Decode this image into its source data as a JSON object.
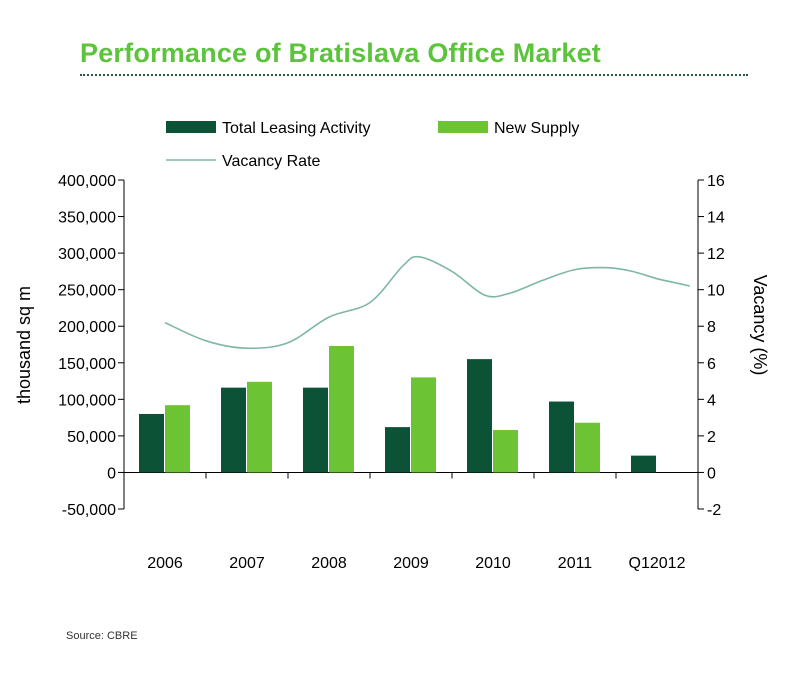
{
  "page": {
    "title": "Performance of Bratislava Office Market",
    "source": "Source: CBRE"
  },
  "colors": {
    "title": "#5cc43c",
    "leasing": "#0b5236",
    "supply": "#6cc333",
    "vacancy": "#7fb7a6",
    "axis": "#000000"
  },
  "chart_data": {
    "type": "bar",
    "title": "Performance of Bratislava Office Market",
    "categories": [
      "2006",
      "2007",
      "2008",
      "2009",
      "2010",
      "2011",
      "Q12012"
    ],
    "ylabel": "thousand sq m",
    "y2label": "Vacancy (%)",
    "ylim": [
      -50000,
      400000
    ],
    "y2lim": [
      -2,
      16
    ],
    "yticks": [
      "-50,000",
      "0",
      "50,000",
      "100,000",
      "150,000",
      "200,000",
      "250,000",
      "300,000",
      "350,000",
      "400,000"
    ],
    "y2ticks": [
      "-2",
      "0",
      "2",
      "4",
      "6",
      "8",
      "10",
      "12",
      "14",
      "16"
    ],
    "series": [
      {
        "name": "Total Leasing Activity",
        "type": "bar",
        "axis": "left",
        "values": [
          80000,
          116000,
          116000,
          62000,
          155000,
          97000,
          23000
        ]
      },
      {
        "name": "New Supply",
        "type": "bar",
        "axis": "left",
        "values": [
          92000,
          124000,
          173000,
          130000,
          58000,
          68000,
          null
        ]
      },
      {
        "name": "Vacancy Rate",
        "type": "line",
        "axis": "right",
        "x": [
          0,
          0.5,
          1,
          1.5,
          2,
          2.5,
          2.9,
          3.1,
          3.5,
          3.9,
          4.2,
          4.6,
          5,
          5.4,
          5.7,
          6,
          6.2,
          6.4
        ],
        "values": [
          8.2,
          7.2,
          6.8,
          7.1,
          8.5,
          9.3,
          11.3,
          11.8,
          11.0,
          9.7,
          9.8,
          10.5,
          11.1,
          11.2,
          11.0,
          10.6,
          10.4,
          10.2
        ]
      }
    ],
    "legend": "top"
  }
}
